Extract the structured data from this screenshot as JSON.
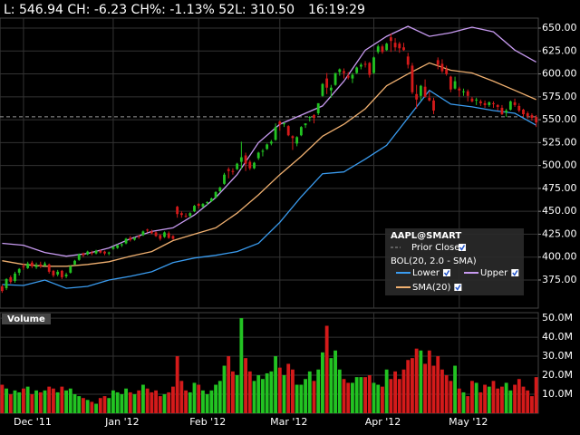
{
  "chart_data": {
    "type": "candlestick",
    "header": {
      "quote": "L: 546.94 CH: -6.23 CH%: -1.13% 52L: 310.50",
      "time": "16:19:29"
    },
    "up_color": "#22c322",
    "down_color": "#d41a1a",
    "xlim": [
      -0.5,
      125.5
    ],
    "xticks": [
      {
        "value": 5,
        "label": "Dec '11"
      },
      {
        "value": 26,
        "label": "Jan '12"
      },
      {
        "value": 46,
        "label": "Feb '12"
      },
      {
        "value": 65,
        "label": "Mar '12"
      },
      {
        "value": 87,
        "label": "Apr '12"
      },
      {
        "value": 107,
        "label": "May '12"
      }
    ],
    "ylim": [
      344.3,
      660.9
    ],
    "yticks": [
      {
        "value": 375,
        "label": "375.00"
      },
      {
        "value": 400,
        "label": "400.00"
      },
      {
        "value": 425,
        "label": "425.00"
      },
      {
        "value": 450,
        "label": "450.00"
      },
      {
        "value": 475,
        "label": "475.00"
      },
      {
        "value": 500,
        "label": "500.00"
      },
      {
        "value": 525,
        "label": "525.00"
      },
      {
        "value": 550,
        "label": "550.00"
      },
      {
        "value": 575,
        "label": "575.00"
      },
      {
        "value": 600,
        "label": "600.00"
      },
      {
        "value": 625,
        "label": "625.00"
      },
      {
        "value": 650,
        "label": "650.00"
      }
    ],
    "grid": true,
    "ohlc": [
      [
        368,
        370,
        361,
        363
      ],
      [
        366,
        377,
        364,
        376
      ],
      [
        378,
        380,
        371,
        373
      ],
      [
        374,
        384,
        372,
        382
      ],
      [
        383,
        388,
        380,
        387
      ],
      [
        390,
        393,
        386,
        389
      ],
      [
        388,
        395,
        387,
        393
      ],
      [
        394,
        396,
        388,
        390
      ],
      [
        389,
        394,
        387,
        391
      ],
      [
        392,
        395,
        388,
        390
      ],
      [
        391,
        395,
        390,
        393
      ],
      [
        392,
        393,
        382,
        384
      ],
      [
        385,
        386,
        378,
        380
      ],
      [
        381,
        386,
        379,
        384
      ],
      [
        385,
        386,
        376,
        378
      ],
      [
        379,
        383,
        377,
        381
      ],
      [
        383,
        391,
        382,
        390
      ],
      [
        392,
        397,
        391,
        396
      ],
      [
        397,
        404,
        396,
        403
      ],
      [
        404,
        405,
        400,
        402
      ],
      [
        403,
        407,
        402,
        406
      ],
      [
        405,
        407,
        402,
        404
      ],
      [
        404,
        408,
        403,
        407
      ],
      [
        407,
        408,
        404,
        405
      ],
      [
        406,
        407,
        402,
        404
      ],
      [
        404,
        406,
        402,
        405
      ],
      [
        409,
        412,
        408,
        411
      ],
      [
        410,
        414,
        409,
        413
      ],
      [
        413,
        415,
        411,
        414
      ],
      [
        415,
        421,
        414,
        420
      ],
      [
        421,
        423,
        417,
        419
      ],
      [
        419,
        422,
        418,
        421
      ],
      [
        423,
        424,
        420,
        422
      ],
      [
        424,
        429,
        423,
        428
      ],
      [
        430,
        431,
        427,
        429
      ],
      [
        428,
        430,
        425,
        426
      ],
      [
        427,
        428,
        422,
        423
      ],
      [
        424,
        425,
        418,
        420
      ],
      [
        422,
        428,
        421,
        427
      ],
      [
        426,
        428,
        420,
        421
      ],
      [
        423,
        424,
        419,
        420
      ],
      [
        455,
        456,
        443,
        447
      ],
      [
        448,
        450,
        443,
        446
      ],
      [
        445,
        448,
        443,
        444
      ],
      [
        445,
        449,
        443,
        448
      ],
      [
        450,
        457,
        449,
        456
      ],
      [
        458,
        459,
        453,
        456
      ],
      [
        455,
        459,
        454,
        458
      ],
      [
        459,
        461,
        457,
        460
      ],
      [
        461,
        465,
        460,
        464
      ],
      [
        465,
        472,
        464,
        471
      ],
      [
        472,
        477,
        471,
        476
      ],
      [
        480,
        492,
        479,
        490
      ],
      [
        496,
        498,
        486,
        494
      ],
      [
        494,
        497,
        490,
        493
      ],
      [
        496,
        503,
        495,
        502
      ],
      [
        504,
        526,
        496,
        509
      ],
      [
        511,
        514,
        494,
        502
      ],
      [
        504,
        506,
        495,
        497
      ],
      [
        497,
        504,
        496,
        503
      ],
      [
        508,
        515,
        506,
        514
      ],
      [
        515,
        518,
        510,
        516
      ],
      [
        518,
        524,
        517,
        523
      ],
      [
        524,
        528,
        522,
        526
      ],
      [
        528,
        546,
        527,
        542
      ],
      [
        548,
        549,
        538,
        545
      ],
      [
        546,
        547,
        542,
        546
      ],
      [
        543,
        544,
        532,
        533
      ],
      [
        532,
        533,
        517,
        530
      ],
      [
        524,
        532,
        521,
        531
      ],
      [
        533,
        543,
        532,
        542
      ],
      [
        544,
        546,
        541,
        546
      ],
      [
        552,
        554,
        548,
        553
      ],
      [
        555,
        556,
        546,
        552
      ],
      [
        557,
        568,
        555,
        568
      ],
      [
        576,
        590,
        575,
        589
      ],
      [
        595,
        601,
        578,
        585
      ],
      [
        582,
        588,
        574,
        585
      ],
      [
        588,
        601,
        587,
        601
      ],
      [
        602,
        606,
        598,
        605
      ],
      [
        603,
        606,
        595,
        601
      ],
      [
        598,
        602,
        594,
        596
      ],
      [
        595,
        601,
        590,
        599
      ],
      [
        601,
        608,
        600,
        607
      ],
      [
        608,
        612,
        605,
        610
      ],
      [
        611,
        614,
        607,
        610
      ],
      [
        612,
        613,
        596,
        599
      ],
      [
        601,
        619,
        600,
        618
      ],
      [
        624,
        632,
        622,
        630
      ],
      [
        630,
        632,
        622,
        624
      ],
      [
        626,
        634,
        625,
        633
      ],
      [
        640,
        644,
        624,
        636
      ],
      [
        634,
        639,
        625,
        629
      ],
      [
        633,
        635,
        623,
        628
      ],
      [
        629,
        634,
        625,
        626
      ],
      [
        619,
        623,
        606,
        610
      ],
      [
        609,
        612,
        578,
        580
      ],
      [
        578,
        588,
        562,
        572
      ],
      [
        576,
        588,
        571,
        587
      ],
      [
        586,
        594,
        574,
        575
      ],
      [
        574,
        581,
        570,
        571
      ],
      [
        571,
        574,
        556,
        560
      ],
      [
        615,
        618,
        605,
        610
      ],
      [
        611,
        616,
        601,
        603
      ],
      [
        605,
        609,
        598,
        600
      ],
      [
        597,
        598,
        580,
        583
      ],
      [
        584,
        597,
        583,
        592
      ],
      [
        584,
        586,
        575,
        582
      ],
      [
        580,
        584,
        576,
        581
      ],
      [
        581,
        583,
        570,
        576
      ],
      [
        573,
        575,
        569,
        570
      ],
      [
        572,
        574,
        566,
        572
      ],
      [
        570,
        572,
        565,
        568
      ],
      [
        568,
        571,
        563,
        566
      ],
      [
        566,
        570,
        564,
        569
      ],
      [
        568,
        570,
        563,
        567
      ],
      [
        566,
        567,
        560,
        564
      ],
      [
        563,
        566,
        555,
        556
      ],
      [
        558,
        562,
        553,
        560
      ],
      [
        561,
        571,
        560,
        570
      ],
      [
        569,
        573,
        564,
        566
      ],
      [
        565,
        568,
        558,
        560
      ],
      [
        561,
        562,
        553,
        556
      ],
      [
        557,
        559,
        551,
        554
      ],
      [
        555,
        557,
        549,
        552
      ],
      [
        553,
        555,
        542,
        547
      ]
    ],
    "prior_close": {
      "name": "Prior Close",
      "value": 553.17,
      "color": "#9a9a9a"
    },
    "band_index": [
      0,
      5,
      10,
      15,
      20,
      25,
      30,
      35,
      40,
      45,
      50,
      55,
      60,
      65,
      70,
      75,
      80,
      85,
      90,
      95,
      100,
      105,
      110,
      115,
      120,
      125
    ],
    "indicator": "BOL(20, 2.0 - SMA)",
    "series": [
      {
        "name": "Lower",
        "color": "#3a9cf0",
        "values": [
          370,
          369,
          375,
          366,
          368,
          375,
          379,
          384,
          394,
          399,
          402,
          406,
          415,
          438,
          466,
          491,
          493,
          507,
          522,
          552,
          582,
          567,
          564,
          560,
          557,
          544
        ]
      },
      {
        "name": "Upper",
        "color": "#c79af0",
        "values": [
          415,
          413,
          405,
          401,
          404,
          410,
          420,
          428,
          432,
          446,
          465,
          490,
          525,
          545,
          555,
          565,
          592,
          626,
          641,
          652,
          641,
          645,
          651,
          646,
          626,
          613
        ]
      },
      {
        "name": "SMA(20)",
        "color": "#f0b070",
        "values": [
          396,
          392,
          390,
          390,
          392,
          395,
          401,
          406,
          418,
          425,
          432,
          448,
          468,
          490,
          510,
          532,
          545,
          562,
          587,
          600,
          612,
          604,
          601,
          592,
          582,
          572
        ]
      }
    ],
    "legend_title": "AAPL@SMART",
    "volume": {
      "title": "Volume",
      "ylim": [
        0,
        52.9
      ],
      "yticks": [
        {
          "value": 10,
          "label": "10.0M"
        },
        {
          "value": 20,
          "label": "20.0M"
        },
        {
          "value": 30,
          "label": "30.0M"
        },
        {
          "value": 40,
          "label": "40.0M"
        },
        {
          "value": 50,
          "label": "50.0M"
        }
      ],
      "values": [
        15,
        13,
        10,
        12,
        11,
        13,
        14,
        10,
        12,
        11,
        12,
        14,
        13,
        11,
        14,
        12,
        13,
        10,
        9,
        8,
        7,
        6,
        5,
        8,
        9,
        8,
        12,
        11,
        10,
        13,
        11,
        10,
        12,
        15,
        13,
        11,
        12,
        9,
        10,
        11,
        14,
        30,
        17,
        12,
        11,
        16,
        15,
        12,
        10,
        12,
        15,
        17,
        25,
        30,
        22,
        20,
        50,
        29,
        22,
        17,
        20,
        18,
        21,
        22,
        30,
        24,
        20,
        26,
        23,
        15,
        15,
        18,
        22,
        17,
        23,
        32,
        46,
        29,
        33,
        23,
        18,
        16,
        16,
        19,
        19,
        19,
        20,
        16,
        15,
        14,
        23,
        18,
        22,
        18,
        23,
        28,
        29,
        34,
        33,
        26,
        33,
        25,
        30,
        23,
        20,
        17,
        25,
        13,
        11,
        9,
        17,
        16,
        11,
        15,
        14,
        17,
        13,
        14,
        16,
        12,
        15,
        18,
        14,
        12,
        9,
        19
      ]
    }
  }
}
